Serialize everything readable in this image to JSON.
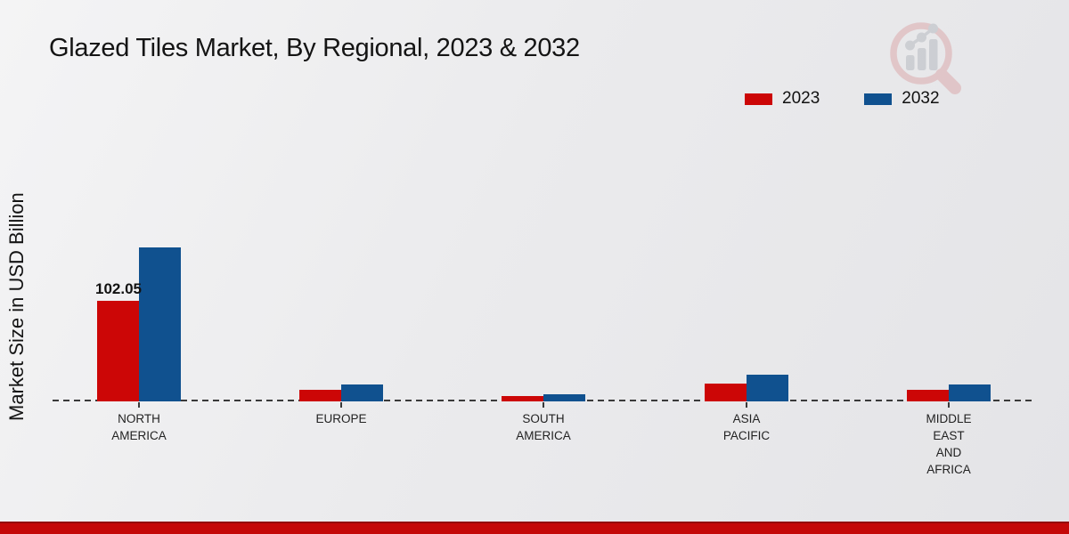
{
  "header": {
    "title": "Glazed Tiles Market, By Regional, 2023 & 2032"
  },
  "y_axis": {
    "label": "Market Size in USD Billion"
  },
  "legend": [
    {
      "label": "2023",
      "color": "#cc0606"
    },
    {
      "label": "2032",
      "color": "#10518f"
    }
  ],
  "annotations": {
    "na_2023_value": "102.05"
  },
  "colors": {
    "series_2023": "#cc0606",
    "series_2032": "#10518f",
    "baseline": "#3a3a3a",
    "footer_bar": "#c40808",
    "footer_bar_edge": "#930c0c",
    "watermark_ring": "#dcabad",
    "watermark_bars": "#b7bbc1",
    "background": "#ebebed"
  },
  "chart_data": {
    "type": "bar",
    "title": "Glazed Tiles Market, By Regional, 2023 & 2032",
    "ylabel": "Market Size in USD Billion",
    "units": "USD Billion",
    "categories": [
      "NORTH AMERICA",
      "EUROPE",
      "SOUTH AMERICA",
      "ASIA PACIFIC",
      "MIDDLE EAST AND AFRICA"
    ],
    "display_labels": [
      "NORTH\nAMERICA",
      "EUROPE",
      "SOUTH\nAMERICA",
      "ASIA\nPACIFIC",
      "MIDDLE\nEAST\nAND\nAFRICA"
    ],
    "series": [
      {
        "name": "2023",
        "color": "#cc0606",
        "values": [
          102.05,
          11.8,
          5.4,
          18.1,
          11.7
        ]
      },
      {
        "name": "2032",
        "color": "#10518f",
        "values": [
          156.3,
          17.2,
          7.5,
          27.1,
          17.6
        ]
      }
    ],
    "value_labels": [
      {
        "series": "2023",
        "category": "NORTH AMERICA",
        "text": "102.05"
      }
    ],
    "ylim": [
      0,
      170
    ],
    "grid": false,
    "legend_position": "top-right"
  }
}
